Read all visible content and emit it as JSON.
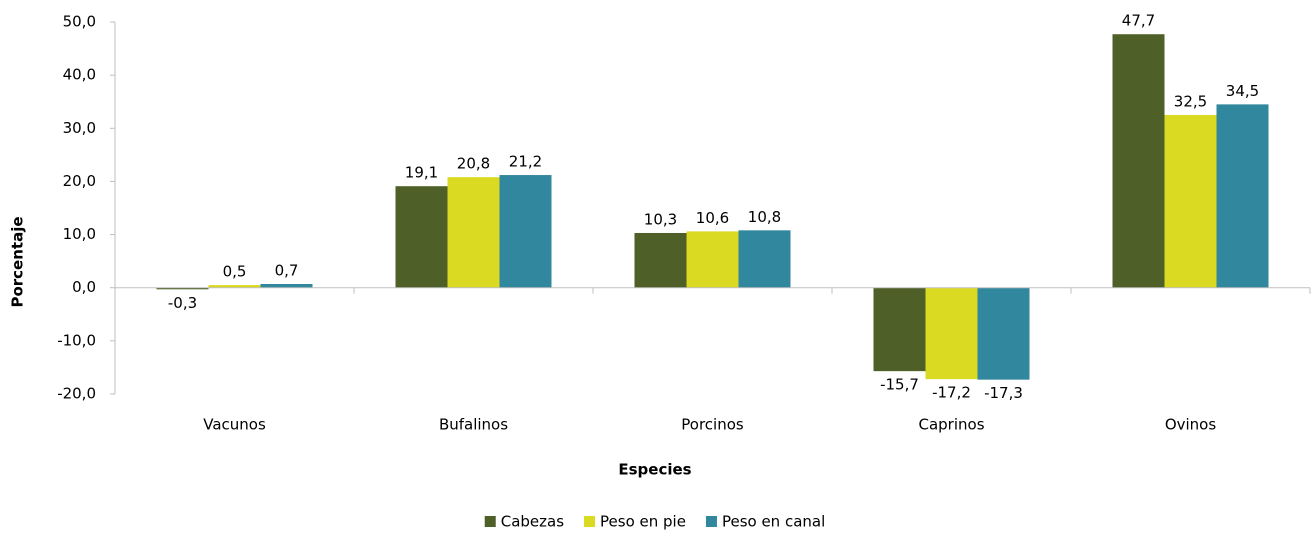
{
  "chart_data": {
    "type": "bar",
    "x_label": "Especies",
    "y_label": "Porcentaje",
    "categories": [
      "Vacunos",
      "Bufalinos",
      "Porcinos",
      "Caprinos",
      "Ovinos"
    ],
    "series": [
      {
        "name": "Cabezas",
        "color": "#4e5f27",
        "values": [
          -0.3,
          19.1,
          10.3,
          -15.7,
          47.7
        ],
        "value_labels": [
          "-0,3",
          "19,1",
          "10,3",
          "-15,7",
          "47,7"
        ]
      },
      {
        "name": "Peso en pie",
        "color": "#dada22",
        "values": [
          0.5,
          20.8,
          10.6,
          -17.2,
          32.5
        ],
        "value_labels": [
          "0,5",
          "20,8",
          "10,6",
          "-17,2",
          "32,5"
        ]
      },
      {
        "name": "Peso en canal",
        "color": "#31879d",
        "values": [
          0.7,
          21.2,
          10.8,
          -17.3,
          34.5
        ],
        "value_labels": [
          "0,7",
          "21,2",
          "10,8",
          "-17,3",
          "34,5"
        ]
      }
    ],
    "ylim": [
      -20,
      50
    ],
    "yticks": [
      {
        "value": -20,
        "label": "-20,0"
      },
      {
        "value": -10,
        "label": "-10,0"
      },
      {
        "value": 0,
        "label": "0,0"
      },
      {
        "value": 10,
        "label": "10,0"
      },
      {
        "value": 20,
        "label": "20,0"
      },
      {
        "value": 30,
        "label": "30,0"
      },
      {
        "value": 40,
        "label": "40,0"
      },
      {
        "value": 50,
        "label": "50,0"
      }
    ],
    "grid": false,
    "legend": "bottom"
  }
}
